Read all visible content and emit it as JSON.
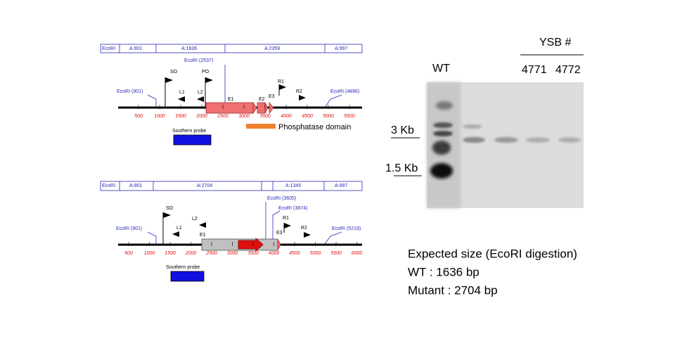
{
  "wt_map": {
    "fragments": [
      "EcoRI",
      "A:901",
      "A:1636",
      "A:2359",
      "A:997"
    ],
    "sites": [
      "EcoRI (901)",
      "EcoRI (2537)",
      "EcoRI (4896)"
    ],
    "features": [
      "SO",
      "PO",
      "L1",
      "L2",
      "E1",
      "E2",
      "E3",
      "R1",
      "R2"
    ],
    "axis": [
      500,
      1000,
      1500,
      2000,
      2500,
      3000,
      3500,
      4000,
      4500,
      5000,
      5500
    ],
    "probe": "Southern probe",
    "domain": "Phosphatase domain"
  },
  "mutant_map": {
    "fragments": [
      "EcoRI",
      "A:901",
      "A:2704",
      "A:1345",
      "A:997"
    ],
    "sites": [
      "EcoRI (901)",
      "EcoRI (3605)",
      "EcoRI (3874)",
      "EcoRI (5219)"
    ],
    "features": [
      "SO",
      "L1",
      "L2",
      "E1",
      "R1",
      "E3",
      "R2"
    ],
    "axis": [
      500,
      1000,
      1500,
      2000,
      2500,
      3000,
      3500,
      4000,
      4500,
      5000,
      5500,
      6000
    ],
    "probe": "Southern probe"
  },
  "blot": {
    "group": "YSB #",
    "lanes": [
      "WT",
      "4771",
      "4772"
    ],
    "markers": [
      "3 Kb",
      "1.5 Kb"
    ]
  },
  "notes": [
    "Expected size (EcoRI digestion)",
    "WT : 1636 bp",
    "Mutant : 2704 bp"
  ]
}
